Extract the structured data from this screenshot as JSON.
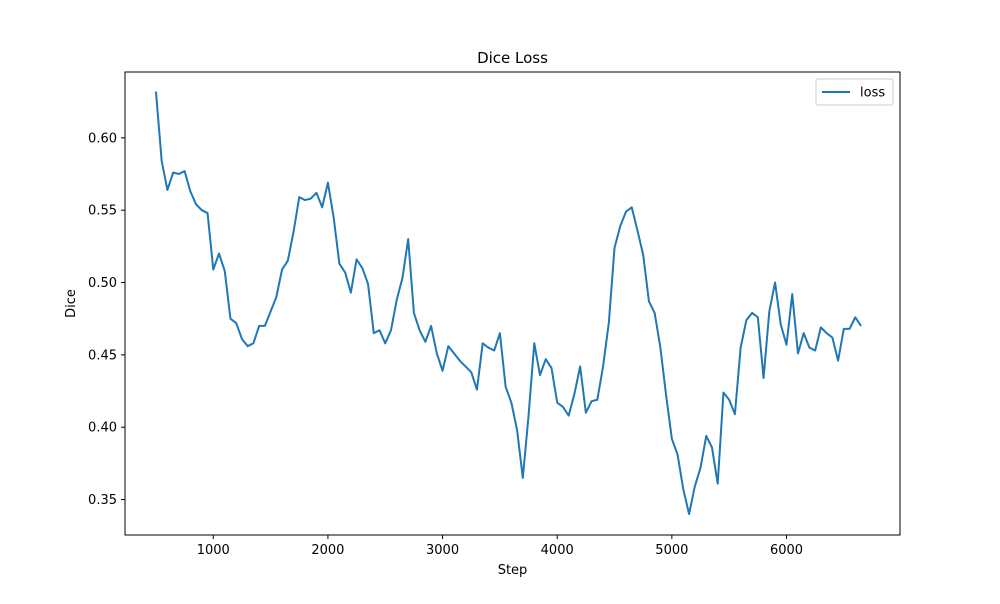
{
  "chart_data": {
    "type": "line",
    "title": "Dice Loss",
    "xlabel": "Step",
    "ylabel": "Dice",
    "xlim": [
      230,
      6990
    ],
    "ylim": [
      0.3255,
      0.6455
    ],
    "xticks": [
      1000,
      2000,
      3000,
      4000,
      5000,
      6000
    ],
    "yticks": [
      0.35,
      0.4,
      0.45,
      0.5,
      0.55,
      0.6
    ],
    "ytick_labels": [
      "0.35",
      "0.40",
      "0.45",
      "0.50",
      "0.55",
      "0.60"
    ],
    "grid": false,
    "legend": {
      "position": "top-right",
      "entries": [
        "loss"
      ]
    },
    "series": [
      {
        "name": "loss",
        "color": "#1f77b4",
        "x": [
          500,
          550,
          600,
          650,
          700,
          750,
          800,
          850,
          900,
          950,
          1000,
          1050,
          1100,
          1150,
          1200,
          1250,
          1300,
          1350,
          1400,
          1450,
          1500,
          1550,
          1600,
          1650,
          1700,
          1750,
          1800,
          1850,
          1900,
          1950,
          2000,
          2050,
          2100,
          2150,
          2200,
          2250,
          2300,
          2350,
          2400,
          2450,
          2500,
          2550,
          2600,
          2650,
          2700,
          2750,
          2800,
          2850,
          2900,
          2950,
          3000,
          3050,
          3100,
          3150,
          3200,
          3250,
          3300,
          3350,
          3400,
          3450,
          3500,
          3550,
          3600,
          3650,
          3700,
          3750,
          3800,
          3850,
          3900,
          3950,
          4000,
          4050,
          4100,
          4150,
          4200,
          4250,
          4300,
          4350,
          4400,
          4450,
          4500,
          4550,
          4600,
          4650,
          4700,
          4750,
          4800,
          4850,
          4900,
          4950,
          5000,
          5050,
          5100,
          5150,
          5200,
          5250,
          5300,
          5350,
          5400,
          5450,
          5500,
          5550,
          5600,
          5650,
          5700,
          5750,
          5800,
          5850,
          5900,
          5950,
          6000,
          6050,
          6100,
          6150,
          6200,
          6250,
          6300,
          6350,
          6400,
          6450,
          6500,
          6550,
          6600,
          6650
        ],
        "y": [
          0.632,
          0.584,
          0.564,
          0.576,
          0.575,
          0.577,
          0.563,
          0.554,
          0.55,
          0.548,
          0.509,
          0.52,
          0.508,
          0.475,
          0.472,
          0.461,
          0.456,
          0.458,
          0.47,
          0.47,
          0.48,
          0.49,
          0.509,
          0.515,
          0.535,
          0.559,
          0.557,
          0.558,
          0.562,
          0.552,
          0.569,
          0.545,
          0.513,
          0.507,
          0.493,
          0.516,
          0.51,
          0.499,
          0.465,
          0.467,
          0.458,
          0.467,
          0.488,
          0.503,
          0.53,
          0.479,
          0.467,
          0.459,
          0.47,
          0.451,
          0.439,
          0.456,
          0.451,
          0.446,
          0.442,
          0.438,
          0.426,
          0.458,
          0.455,
          0.453,
          0.465,
          0.428,
          0.417,
          0.398,
          0.365,
          0.408,
          0.458,
          0.436,
          0.447,
          0.441,
          0.417,
          0.414,
          0.408,
          0.423,
          0.442,
          0.41,
          0.418,
          0.419,
          0.442,
          0.472,
          0.524,
          0.539,
          0.549,
          0.552,
          0.536,
          0.519,
          0.487,
          0.479,
          0.455,
          0.422,
          0.392,
          0.381,
          0.357,
          0.34,
          0.359,
          0.372,
          0.394,
          0.386,
          0.361,
          0.424,
          0.419,
          0.409,
          0.455,
          0.474,
          0.479,
          0.476,
          0.434,
          0.48,
          0.5,
          0.471,
          0.457,
          0.492,
          0.451,
          0.465,
          0.455,
          0.453,
          0.469,
          0.465,
          0.462,
          0.446,
          0.468,
          0.468,
          0.476,
          0.47
        ]
      }
    ]
  }
}
